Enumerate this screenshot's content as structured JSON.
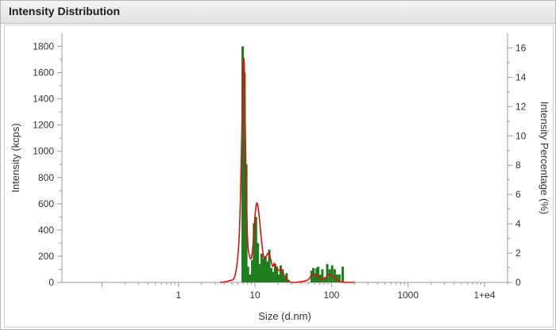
{
  "panel": {
    "title": "Intensity Distribution"
  },
  "chart_data": {
    "type": "bar",
    "xlabel": "Size (d.nm)",
    "ylabel": "Intensity (kcps)",
    "y2label": "Intensity Percentage (%)",
    "xscale": "log",
    "xlim": [
      0.03,
      20000
    ],
    "ylim": [
      0,
      1900
    ],
    "y2lim": [
      0,
      17
    ],
    "grid": false,
    "legend": "none",
    "xticks": [
      {
        "value": 1,
        "label": "1"
      },
      {
        "value": 10,
        "label": "10"
      },
      {
        "value": 100,
        "label": "100"
      },
      {
        "value": 1000,
        "label": "1000"
      },
      {
        "value": 10000,
        "label": "1+e4"
      }
    ],
    "yticks": [
      0,
      200,
      400,
      600,
      800,
      1000,
      1200,
      1400,
      1600,
      1800
    ],
    "y2ticks": [
      0,
      2,
      4,
      6,
      8,
      10,
      12,
      14,
      16
    ],
    "colors": {
      "bars": "#1e7d1e",
      "curve": "#dd1111"
    },
    "series": [
      {
        "type": "bar",
        "axis": "left",
        "x": [
          6.9,
          7.3,
          7.7,
          8.1,
          8.6,
          9.2,
          9.7,
          10.3,
          10.9,
          11.5,
          12.2,
          12.9,
          13.7,
          14.5,
          15.4,
          16.3,
          17.3,
          18.3,
          19.4,
          20.5,
          21.7,
          23.0,
          24.4,
          25.9,
          27.4,
          29.0,
          55,
          58,
          61,
          64,
          67,
          71,
          76,
          82,
          88,
          95,
          102,
          110,
          118,
          127,
          140
        ],
        "values": [
          1800,
          1600,
          900,
          120,
          60,
          170,
          450,
          500,
          300,
          140,
          220,
          180,
          200,
          160,
          250,
          110,
          80,
          140,
          120,
          60,
          130,
          100,
          40,
          70,
          20,
          5,
          90,
          110,
          70,
          110,
          120,
          60,
          100,
          40,
          140,
          100,
          130,
          100,
          60,
          60,
          120
        ]
      },
      {
        "type": "line",
        "axis": "right",
        "x": [
          3.5,
          4.5,
          5.5,
          6.2,
          6.6,
          6.9,
          7.1,
          7.3,
          7.6,
          8.0,
          8.5,
          9.0,
          9.5,
          10.0,
          10.5,
          11.0,
          11.5,
          12.0,
          13.0,
          14.0,
          15.0,
          16.0,
          17.0,
          18.0,
          19.0,
          20.0,
          22.0,
          24.0,
          26.0,
          30.0,
          35.0,
          40.0,
          45.0,
          50.0,
          55.0,
          60.0,
          65.0,
          70.0,
          75.0,
          80.0,
          85.0,
          90.0,
          95.0,
          100.0,
          105.0,
          110.0,
          115.0,
          120.0,
          125.0,
          130.0,
          135.0,
          140.0,
          160.0,
          200.0
        ],
        "values": [
          0,
          0.1,
          0.5,
          3,
          8,
          13.5,
          15.3,
          14,
          8,
          3,
          1.8,
          1.7,
          2.8,
          4.5,
          5.4,
          5.1,
          4.2,
          3.2,
          1.7,
          1.8,
          2.0,
          1.6,
          1.1,
          1.3,
          1.0,
          0.8,
          0.9,
          0.5,
          0.2,
          0.0,
          0.0,
          0.05,
          0.1,
          0.2,
          0.5,
          0.55,
          0.45,
          0.3,
          0.2,
          0.25,
          0.35,
          0.5,
          0.55,
          0.5,
          0.4,
          0.3,
          0.2,
          0.15,
          0.1,
          0.05,
          0.03,
          0.02,
          0,
          0
        ]
      }
    ]
  }
}
